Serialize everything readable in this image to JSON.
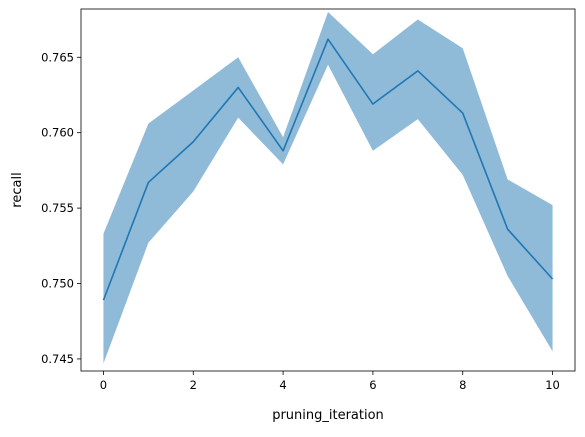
{
  "chart_data": {
    "type": "line",
    "title": "",
    "xlabel": "pruning_iteration",
    "ylabel": "recall",
    "xlim": [
      -0.5,
      10.5
    ],
    "ylim": [
      0.7442,
      0.7682
    ],
    "x_ticks": [
      0,
      2,
      4,
      6,
      8,
      10
    ],
    "x_tick_labels": [
      "0",
      "2",
      "4",
      "6",
      "8",
      "10"
    ],
    "y_ticks": [
      0.745,
      0.75,
      0.755,
      0.76,
      0.765
    ],
    "y_tick_labels": [
      "0.745",
      "0.750",
      "0.755",
      "0.760",
      "0.765"
    ],
    "grid": false,
    "legend": "none",
    "series": [
      {
        "x": [
          0,
          1,
          2,
          3,
          4,
          5,
          6,
          7,
          8,
          9,
          10
        ],
        "values": [
          0.7489,
          0.7567,
          0.7594,
          0.763,
          0.7588,
          0.7662,
          0.7619,
          0.7641,
          0.7613,
          0.7536,
          0.7503
        ],
        "band_lower": [
          0.7447,
          0.7527,
          0.7561,
          0.761,
          0.7579,
          0.7645,
          0.7588,
          0.7609,
          0.7572,
          0.7505,
          0.7455
        ],
        "band_upper": [
          0.7533,
          0.7606,
          0.7628,
          0.765,
          0.7597,
          0.768,
          0.7652,
          0.7675,
          0.7656,
          0.7569,
          0.7552
        ],
        "color": "#1f77b4",
        "band_color": "#1f77b4"
      }
    ]
  }
}
